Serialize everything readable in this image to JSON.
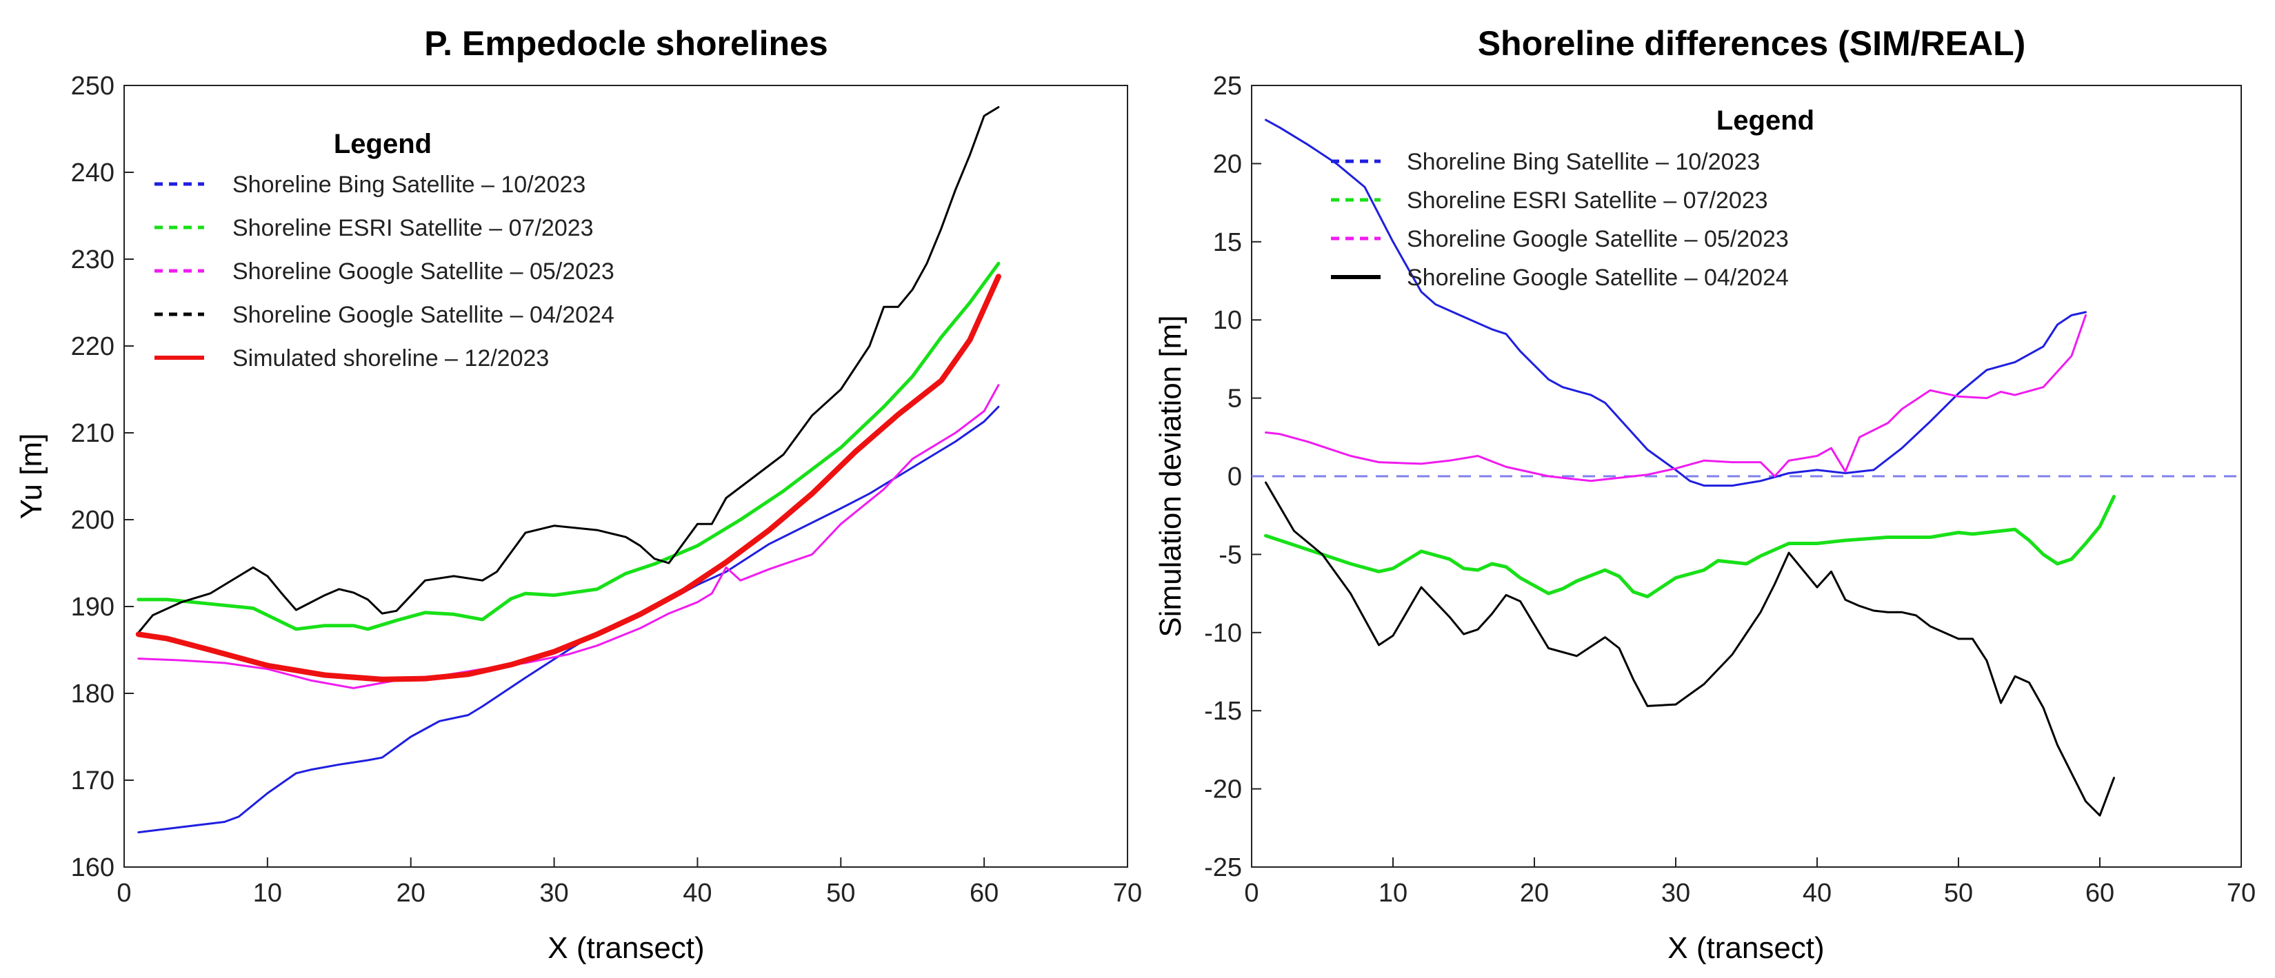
{
  "chart_data": [
    {
      "type": "line",
      "title": "P. Empedocle shorelines",
      "xlabel": "X (transect)",
      "ylabel": "Yu [m]",
      "xlim": [
        0,
        70
      ],
      "ylim": [
        160,
        250
      ],
      "xticks": [
        0,
        10,
        20,
        30,
        40,
        50,
        60,
        70
      ],
      "yticks": [
        160,
        170,
        180,
        190,
        200,
        210,
        220,
        230,
        240,
        250
      ],
      "legend": {
        "title": "Legend",
        "placement": "top-left",
        "entries": [
          {
            "label": "Shoreline Bing Satellite – 10/2023",
            "color": "#1f1fe0",
            "style": "dashed"
          },
          {
            "label": "Shoreline ESRI Satellite – 07/2023",
            "color": "#18e018",
            "style": "dashed"
          },
          {
            "label": "Shoreline Google Satellite – 05/2023",
            "color": "#f01cf0",
            "style": "dashed"
          },
          {
            "label": "Shoreline Google Satellite – 04/2024",
            "color": "#000000",
            "style": "dashed"
          },
          {
            "label": "Simulated shoreline – 12/2023",
            "color": "#ee1111",
            "style": "solid"
          }
        ]
      },
      "series": [
        {
          "name": "Shoreline Bing Satellite – 10/2023",
          "color": "#1f1fe0",
          "width": 3,
          "x": [
            1,
            4,
            7,
            8,
            10,
            12,
            13,
            15,
            17,
            18,
            20,
            22,
            24,
            25,
            28,
            31,
            33,
            35,
            38,
            40,
            42,
            45,
            50,
            52,
            55,
            58,
            60,
            61
          ],
          "y": [
            164,
            164.6,
            165.2,
            165.8,
            168.5,
            170.8,
            171.2,
            171.8,
            172.3,
            172.6,
            175,
            176.8,
            177.5,
            178.5,
            181.8,
            185,
            187,
            188.5,
            190.7,
            192.5,
            194,
            197.2,
            201.3,
            203,
            206,
            209,
            211.3,
            213
          ]
        },
        {
          "name": "Shoreline ESRI Satellite – 07/2023",
          "color": "#18e018",
          "width": 5,
          "x": [
            1,
            3,
            6,
            9,
            12,
            14,
            16,
            17,
            19,
            21,
            23,
            25,
            27,
            28,
            30,
            33,
            35,
            37,
            40,
            43,
            46,
            50,
            53,
            55,
            57,
            59,
            61
          ],
          "y": [
            190.8,
            190.8,
            190.3,
            189.8,
            187.4,
            187.8,
            187.8,
            187.4,
            188.4,
            189.3,
            189.1,
            188.5,
            190.9,
            191.5,
            191.3,
            192.0,
            193.8,
            194.9,
            197.0,
            200.0,
            203.3,
            208.3,
            213.0,
            216.5,
            221.0,
            225.0,
            229.5
          ]
        },
        {
          "name": "Shoreline Google Satellite – 05/2023",
          "color": "#f01cf0",
          "width": 3,
          "x": [
            1,
            4,
            7,
            10,
            13,
            16,
            18,
            20,
            22,
            25,
            28,
            31,
            33,
            36,
            38,
            40,
            41,
            42,
            43,
            45,
            48,
            50,
            53,
            55,
            58,
            60,
            61
          ],
          "y": [
            184,
            183.8,
            183.5,
            182.8,
            181.5,
            180.6,
            181.2,
            181.8,
            182,
            182.8,
            183.5,
            184.5,
            185.5,
            187.5,
            189.2,
            190.5,
            191.5,
            194.5,
            193,
            194.3,
            196,
            199.5,
            203.5,
            207,
            210,
            212.5,
            215.5
          ]
        },
        {
          "name": "Shoreline Google Satellite – 04/2024",
          "color": "#000000",
          "width": 3,
          "x": [
            1,
            2,
            4,
            6,
            8,
            9,
            10,
            11,
            12,
            14,
            15,
            16,
            17,
            18,
            19,
            21,
            23,
            25,
            26,
            28,
            30,
            33,
            35,
            36,
            37,
            38,
            40,
            41,
            42,
            44,
            46,
            48,
            50,
            52,
            53,
            54,
            55,
            56,
            57,
            58,
            59,
            60,
            61
          ],
          "y": [
            187,
            189,
            190.5,
            191.5,
            193.5,
            194.5,
            193.5,
            191.5,
            189.6,
            191.3,
            192,
            191.6,
            190.8,
            189.2,
            189.5,
            193,
            193.5,
            193,
            194,
            198.5,
            199.3,
            198.8,
            198,
            197,
            195.5,
            195,
            199.5,
            199.5,
            202.5,
            205,
            207.5,
            212,
            215,
            220,
            224.5,
            224.5,
            226.5,
            229.5,
            233.5,
            238,
            242,
            246.5,
            247.5
          ]
        },
        {
          "name": "Simulated shoreline – 12/2023",
          "color": "#ee1111",
          "width": 8,
          "x": [
            1,
            3,
            6,
            10,
            14,
            18,
            21,
            24,
            27,
            30,
            33,
            36,
            39,
            42,
            45,
            48,
            51,
            54,
            57,
            59,
            61
          ],
          "y": [
            186.8,
            186.3,
            185,
            183.2,
            182.1,
            181.6,
            181.7,
            182.2,
            183.3,
            184.8,
            186.8,
            189.1,
            191.8,
            195.1,
            198.8,
            203,
            207.8,
            212.1,
            216,
            220.7,
            228
          ]
        }
      ]
    },
    {
      "type": "line",
      "title": "Shoreline differences (SIM/REAL)",
      "xlabel": "X (transect)",
      "ylabel": "Simulation deviation [m]",
      "xlim": [
        0,
        70
      ],
      "ylim": [
        -25,
        25
      ],
      "xticks": [
        0,
        10,
        20,
        30,
        40,
        50,
        60,
        70
      ],
      "yticks": [
        -25,
        -20,
        -15,
        -10,
        -5,
        0,
        5,
        10,
        15,
        20,
        25
      ],
      "reference_line": {
        "y": 0,
        "color": "#8080ee",
        "style": "dashed"
      },
      "legend": {
        "title": "Legend",
        "placement": "top-center",
        "entries": [
          {
            "label": "Shoreline Bing Satellite – 10/2023",
            "color": "#1f1fe0",
            "style": "dashed"
          },
          {
            "label": "Shoreline ESRI Satellite – 07/2023",
            "color": "#18e018",
            "style": "dashed"
          },
          {
            "label": "Shoreline Google Satellite – 05/2023",
            "color": "#f01cf0",
            "style": "dashed"
          },
          {
            "label": "Shoreline Google Satellite – 04/2024",
            "color": "#000000",
            "style": "solid"
          }
        ]
      },
      "series": [
        {
          "name": "Shoreline Bing Satellite – 10/2023",
          "color": "#1f1fe0",
          "width": 3,
          "x": [
            1,
            2,
            4,
            6,
            8,
            10,
            12,
            13,
            15,
            17,
            18,
            19,
            21,
            22,
            24,
            25,
            28,
            30,
            31,
            32,
            34,
            36,
            38,
            40,
            42,
            44,
            46,
            48,
            50,
            52,
            54,
            56,
            57,
            58,
            59
          ],
          "y": [
            22.8,
            22.3,
            21.2,
            20,
            18.5,
            15,
            11.8,
            11,
            10.2,
            9.4,
            9.1,
            8,
            6.2,
            5.7,
            5.2,
            4.7,
            1.7,
            0.4,
            -0.3,
            -0.6,
            -0.6,
            -0.3,
            0.2,
            0.4,
            0.2,
            0.4,
            1.8,
            3.5,
            5.3,
            6.8,
            7.3,
            8.3,
            9.7,
            10.3,
            10.5
          ]
        },
        {
          "name": "Shoreline ESRI Satellite – 07/2023",
          "color": "#18e018",
          "width": 5,
          "x": [
            1,
            3,
            5,
            7,
            9,
            10,
            12,
            14,
            15,
            16,
            17,
            18,
            19,
            21,
            22,
            23,
            25,
            26,
            27,
            28,
            30,
            32,
            33,
            35,
            36,
            38,
            40,
            42,
            45,
            48,
            50,
            51,
            54,
            55,
            56,
            57,
            58,
            59,
            60,
            61
          ],
          "y": [
            -3.8,
            -4.4,
            -5.0,
            -5.6,
            -6.1,
            -5.9,
            -4.8,
            -5.3,
            -5.9,
            -6.0,
            -5.6,
            -5.8,
            -6.5,
            -7.5,
            -7.2,
            -6.7,
            -6.0,
            -6.4,
            -7.4,
            -7.7,
            -6.5,
            -6.0,
            -5.4,
            -5.6,
            -5.1,
            -4.3,
            -4.3,
            -4.1,
            -3.9,
            -3.9,
            -3.6,
            -3.7,
            -3.4,
            -4.1,
            -5.0,
            -5.6,
            -5.3,
            -4.3,
            -3.2,
            -1.3
          ]
        },
        {
          "name": "Shoreline Google Satellite – 05/2023",
          "color": "#f01cf0",
          "width": 3,
          "x": [
            1,
            2,
            4,
            7,
            9,
            12,
            14,
            16,
            18,
            21,
            24,
            26,
            28,
            30,
            32,
            34,
            36,
            37,
            38,
            40,
            41,
            42,
            43,
            45,
            46,
            48,
            50,
            52,
            53,
            54,
            56,
            58,
            59
          ],
          "y": [
            2.8,
            2.7,
            2.2,
            1.3,
            0.9,
            0.8,
            1.0,
            1.3,
            0.6,
            0,
            -0.3,
            -0.1,
            0.1,
            0.5,
            1.0,
            0.9,
            0.9,
            0,
            1.0,
            1.3,
            1.8,
            0.3,
            2.5,
            3.4,
            4.3,
            5.5,
            5.1,
            5.0,
            5.4,
            5.2,
            5.7,
            7.7,
            10.3
          ]
        },
        {
          "name": "Shoreline Google Satellite – 04/2024",
          "color": "#000000",
          "width": 3,
          "x": [
            1,
            3,
            5,
            7,
            9,
            10,
            12,
            14,
            15,
            16,
            17,
            18,
            19,
            21,
            23,
            25,
            26,
            27,
            28,
            30,
            32,
            34,
            36,
            37,
            38,
            40,
            41,
            42,
            43,
            44,
            45,
            46,
            47,
            48,
            50,
            51,
            52,
            53,
            54,
            55,
            56,
            57,
            58,
            59,
            60,
            61
          ],
          "y": [
            -0.4,
            -3.5,
            -5,
            -7.5,
            -10.8,
            -10.2,
            -7.1,
            -9.0,
            -10.1,
            -9.8,
            -8.8,
            -7.6,
            -8.0,
            -11.0,
            -11.5,
            -10.3,
            -11.0,
            -13.0,
            -14.7,
            -14.6,
            -13.3,
            -11.4,
            -8.7,
            -6.9,
            -4.9,
            -7.1,
            -6.1,
            -7.9,
            -8.3,
            -8.6,
            -8.7,
            -8.7,
            -8.9,
            -9.6,
            -10.4,
            -10.4,
            -11.8,
            -14.5,
            -12.8,
            -13.2,
            -14.8,
            -17.2,
            -19.0,
            -20.8,
            -21.7,
            -19.3
          ]
        }
      ]
    }
  ]
}
